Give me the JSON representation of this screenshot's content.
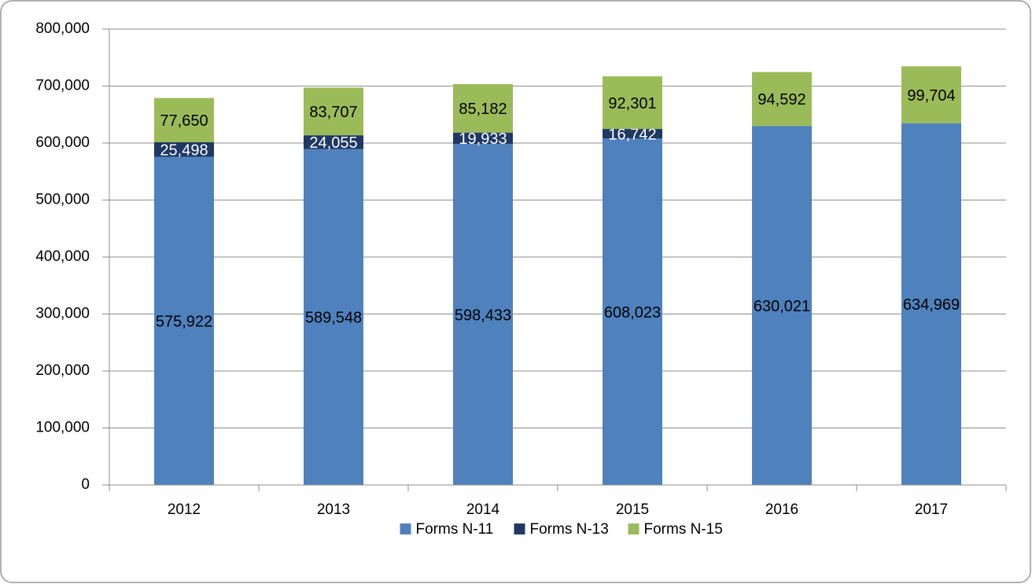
{
  "chart_data": {
    "type": "stacked-bar",
    "categories": [
      "2012",
      "2013",
      "2014",
      "2015",
      "2016",
      "2017"
    ],
    "series": [
      {
        "name": "Forms N-11",
        "color": "#4f81bd",
        "label_color": "#000000",
        "values": [
          575922,
          589548,
          598433,
          608023,
          630021,
          634969
        ],
        "value_labels": [
          "575,922",
          "589,548",
          "598,433",
          "608,023",
          "630,021",
          "634,969"
        ]
      },
      {
        "name": "Forms N-13",
        "color": "#1f3864",
        "label_color": "#ffffff",
        "values": [
          25498,
          24055,
          19933,
          16742,
          null,
          null
        ],
        "value_labels": [
          "25,498",
          "24,055",
          "19,933",
          "16,742",
          null,
          null
        ]
      },
      {
        "name": "Forms N-15",
        "color": "#9bbb59",
        "label_color": "#000000",
        "values": [
          77650,
          83707,
          85182,
          92301,
          94592,
          99704
        ],
        "value_labels": [
          "77,650",
          "83,707",
          "85,182",
          "92,301",
          "94,592",
          "99,704"
        ]
      }
    ],
    "ylim": [
      0,
      800000
    ],
    "yticks": [
      0,
      {
        "value": 100000,
        "label": "100,000"
      },
      {
        "value": 200000,
        "label": "200,000"
      },
      {
        "value": 300000,
        "label": "300,000"
      },
      {
        "value": 400000,
        "label": "400,000"
      },
      {
        "value": 500000,
        "label": "500,000"
      },
      {
        "value": 600000,
        "label": "600,000"
      },
      {
        "value": 700000,
        "label": "700,000"
      },
      {
        "value": 800000,
        "label": "800,000"
      }
    ],
    "grid": true,
    "legend": "bottom"
  }
}
